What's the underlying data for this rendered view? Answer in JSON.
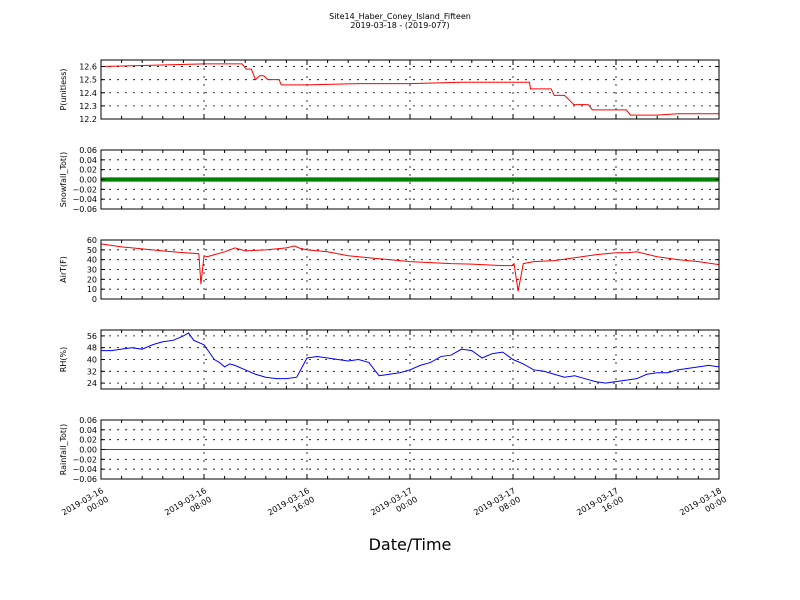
{
  "figure": {
    "title": "Site14_Haber_Coney_Island_Fifteen",
    "subtitle": "2019-03-18 - (2019-077)",
    "xlabel": "Date/Time"
  },
  "chart_data": [
    {
      "type": "line",
      "ylabel": "P(unitless)",
      "color": "#ff0000",
      "ylim": [
        12.2,
        12.65
      ],
      "yticks": [
        "12.2",
        "12.3",
        "12.4",
        "12.5",
        "12.6"
      ],
      "ytick_values": [
        12.2,
        12.3,
        12.4,
        12.5,
        12.6
      ],
      "grid": true,
      "x_hours": [
        0,
        5,
        10,
        13.7,
        14.1,
        14.6,
        15,
        15.4,
        15.8,
        16.2,
        17.3,
        17.5,
        19.5,
        20,
        25,
        30,
        35,
        40,
        41.6,
        41.7,
        43.7,
        44,
        45,
        45.4,
        45.9,
        46.3,
        47.3,
        47.7,
        51,
        51.2,
        51.4,
        51.6,
        52,
        54,
        56,
        60
      ],
      "values": [
        12.6,
        12.61,
        12.62,
        12.62,
        12.58,
        12.58,
        12.5,
        12.53,
        12.53,
        12.5,
        12.5,
        12.46,
        12.46,
        12.46,
        12.47,
        12.47,
        12.48,
        12.48,
        12.48,
        12.43,
        12.43,
        12.38,
        12.38,
        12.35,
        12.31,
        12.31,
        12.31,
        12.27,
        12.27,
        12.25,
        12.23,
        12.23,
        12.23,
        12.23,
        12.24,
        12.24
      ]
    },
    {
      "type": "line",
      "ylabel": "Snowfall_Tot()",
      "color": "#008000",
      "marker": "dot",
      "ylim": [
        -0.06,
        0.06
      ],
      "yticks": [
        "0.06",
        "0.04",
        "0.02",
        "0.00",
        "−0.02",
        "−0.04",
        "−0.06"
      ],
      "ytick_values": [
        0.06,
        0.04,
        0.02,
        0.0,
        -0.02,
        -0.04,
        -0.06
      ],
      "grid": true,
      "x_range_hours": [
        0,
        60
      ],
      "constant_value": 0.0
    },
    {
      "type": "line",
      "ylabel": "AirT(F)",
      "color": "#ff0000",
      "ylim": [
        0,
        60
      ],
      "yticks": [
        "60",
        "50",
        "40",
        "30",
        "20",
        "10",
        "0"
      ],
      "ytick_values": [
        60,
        50,
        40,
        30,
        20,
        10,
        0
      ],
      "grid": true,
      "x_hours": [
        0,
        2,
        4,
        6,
        7.5,
        9.5,
        9.7,
        10,
        10.3,
        11,
        12,
        13,
        14,
        16,
        18,
        18.8,
        19.2,
        20,
        22,
        24,
        26,
        28,
        30,
        32,
        34,
        36,
        38,
        39,
        39.9,
        40.1,
        40.5,
        41,
        42,
        44,
        46,
        48,
        50,
        51,
        52,
        54,
        56,
        58,
        60
      ],
      "values": [
        56,
        53,
        51,
        49,
        47.5,
        46,
        15,
        44,
        43,
        45,
        48,
        52,
        49,
        50,
        52,
        54,
        52,
        50,
        48,
        44,
        42,
        40,
        38,
        37,
        36,
        35.5,
        34.5,
        34,
        34,
        36,
        8,
        36,
        38,
        39,
        42,
        45,
        47,
        47,
        48,
        43,
        40,
        38,
        35
      ]
    },
    {
      "type": "line",
      "ylabel": "RH(%)",
      "color": "#0000ff",
      "ylim": [
        20,
        60
      ],
      "yticks": [
        "56",
        "48",
        "40",
        "32",
        "24"
      ],
      "ytick_values": [
        56,
        48,
        40,
        32,
        24
      ],
      "grid": true,
      "x_hours": [
        0,
        1,
        2,
        3,
        4,
        5,
        6,
        7,
        8,
        8.5,
        9,
        10,
        11,
        11.5,
        12,
        12.5,
        13,
        14,
        15,
        16,
        17,
        18,
        19,
        20,
        21,
        22,
        23,
        24,
        25,
        26,
        27,
        28,
        29,
        30,
        31,
        32,
        33,
        34,
        35,
        36,
        37,
        38,
        39,
        40,
        41,
        42,
        43,
        44,
        45,
        46,
        47,
        48,
        49,
        50,
        51,
        52,
        53,
        54,
        55,
        56,
        57,
        58,
        59,
        60
      ],
      "values": [
        46,
        46,
        47,
        48,
        47,
        50,
        52,
        53,
        56,
        58,
        53,
        50,
        40,
        38,
        35,
        37,
        36,
        33,
        30,
        28,
        27,
        27,
        28,
        41,
        42,
        41,
        40,
        39,
        40,
        38,
        29,
        30,
        31,
        33,
        36,
        38,
        42,
        43,
        47,
        46,
        41,
        44,
        45,
        40,
        37,
        33,
        32,
        30,
        28,
        29,
        27,
        25,
        24,
        25,
        26,
        27,
        30,
        31,
        31,
        33,
        34,
        35,
        36,
        35
      ]
    },
    {
      "type": "line",
      "ylabel": "Rainfall_Tot()",
      "color": "#ff0000",
      "ylim": [
        -0.06,
        0.06
      ],
      "yticks": [
        "0.06",
        "0.04",
        "0.02",
        "0.00",
        "−0.02",
        "−0.04",
        "−0.06"
      ],
      "ytick_values": [
        0.06,
        0.04,
        0.02,
        0.0,
        -0.02,
        -0.04,
        -0.06
      ],
      "grid": true,
      "x_range_hours": [
        0,
        60
      ],
      "constant_value": 0.0
    }
  ],
  "x_axis": {
    "range_hours": [
      0,
      60
    ],
    "ticks": [
      {
        "hour": 0,
        "line1": "2019-03-16",
        "line2": "00:00"
      },
      {
        "hour": 10,
        "line1": "2019-03-16",
        "line2": "08:00"
      },
      {
        "hour": 20,
        "line1": "2019-03-16",
        "line2": "16:00"
      },
      {
        "hour": 30,
        "line1": "2019-03-17",
        "line2": "00:00"
      },
      {
        "hour": 40,
        "line1": "2019-03-17",
        "line2": "08:00"
      },
      {
        "hour": 50,
        "line1": "2019-03-17",
        "line2": "16:00"
      },
      {
        "hour": 60,
        "line1": "2019-03-18",
        "line2": "00:00"
      }
    ]
  }
}
